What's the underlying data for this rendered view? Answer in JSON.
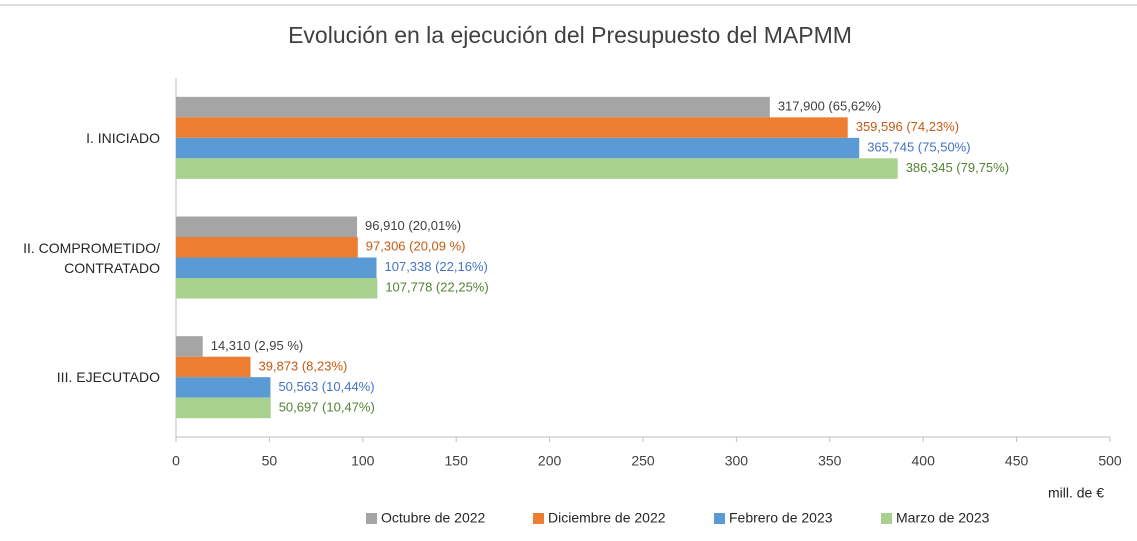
{
  "chart_data": {
    "type": "barh",
    "title": "Evolución en la ejecución del Presupuesto del MAPMM",
    "categories": [
      "I. INICIADO",
      "II. COMPROMETIDO/\nCONTRATADO",
      "III. EJECUTADO"
    ],
    "series": [
      {
        "name": "Octubre de 2022",
        "color": "#a5a5a5",
        "label_color": "#404040",
        "values": [
          317.9,
          96.91,
          14.31
        ],
        "value_labels": [
          "317,900 (65,62%)",
          "96,910 (20,01%)",
          "14,310 (2,95 %)"
        ]
      },
      {
        "name": "Diciembre de 2022",
        "color": "#ed7d31",
        "label_color": "#c55a11",
        "values": [
          359.596,
          97.306,
          39.873
        ],
        "value_labels": [
          "359,596 (74,23%)",
          "97,306 (20,09 %)",
          "39,873 (8,23%)"
        ]
      },
      {
        "name": "Febrero de 2023",
        "color": "#5b9bd5",
        "label_color": "#4472c4",
        "values": [
          365.745,
          107.338,
          50.563
        ],
        "value_labels": [
          "365,745 (75,50%)",
          "107,338 (22,16%)",
          "50,563 (10,44%)"
        ]
      },
      {
        "name": "Marzo de 2023",
        "color": "#a9d18e",
        "label_color": "#548235",
        "values": [
          386.345,
          107.778,
          50.697
        ],
        "value_labels": [
          "386,345 (79,75%)",
          "107,778 (22,25%)",
          "50,697 (10,47%)"
        ]
      }
    ],
    "xlabel": "mill. de €",
    "xlim": [
      0,
      500
    ],
    "xticks": [
      0,
      50,
      100,
      150,
      200,
      250,
      300,
      350,
      400,
      450,
      500
    ],
    "grid": false,
    "legend": "bottom"
  }
}
